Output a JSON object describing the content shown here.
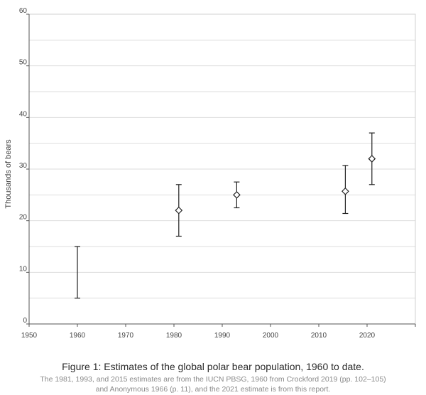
{
  "chart_data": {
    "type": "scatter",
    "title": "",
    "xlabel": "",
    "ylabel": "Thousands of bears",
    "xlim": [
      1950,
      2030
    ],
    "ylim": [
      0,
      60
    ],
    "xticks": [
      1950,
      1960,
      1970,
      1980,
      1990,
      2000,
      2010,
      2020
    ],
    "yticks": [
      0,
      10,
      20,
      30,
      40,
      50,
      60
    ],
    "grid": true,
    "legend": "none",
    "points": [
      {
        "x": 1960,
        "y": null,
        "low": 5,
        "high": 15
      },
      {
        "x": 1981,
        "y": 22,
        "low": 17,
        "high": 27
      },
      {
        "x": 1993,
        "y": 25,
        "low": 22.5,
        "high": 27.5
      },
      {
        "x": 2015.5,
        "y": 25.7,
        "low": 21.4,
        "high": 30.7
      },
      {
        "x": 2021,
        "y": 32,
        "low": 27,
        "high": 37
      }
    ],
    "marker": "open-diamond",
    "colors": {
      "marker": "#222222",
      "grid": "#dddddd",
      "axis": "#555555"
    }
  },
  "caption": {
    "title": "Figure 1: Estimates of the global polar bear population, 1960 to date.",
    "note_line1": "The 1981, 1993, and 2015 estimates are from the IUCN PBSG, 1960 from Crockford 2019 (pp. 102–105)",
    "note_line2": "and Anonymous 1966 (p. 11), and the 2021 estimate is from this report."
  }
}
